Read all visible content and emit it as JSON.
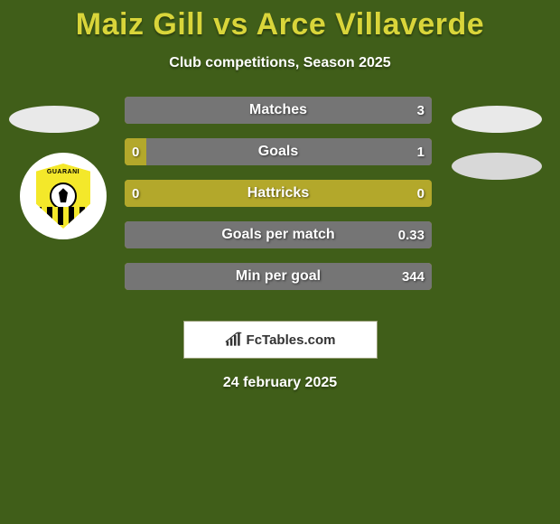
{
  "title": "Maiz Gill vs Arce Villaverde",
  "subtitle": "Club competitions, Season 2025",
  "date": "24 february 2025",
  "colors": {
    "page_bg": "#405e19",
    "title": "#d9d53a",
    "text": "#ffffff",
    "bar_left": "#b3a82b",
    "bar_right": "#757575"
  },
  "crest": {
    "band_text": "GUARANI"
  },
  "branding": {
    "label": "FcTables.com"
  },
  "rows": [
    {
      "label": "Matches",
      "left_val": "",
      "right_val": "3",
      "left_pct": 0,
      "right_pct": 100
    },
    {
      "label": "Goals",
      "left_val": "0",
      "right_val": "1",
      "left_pct": 7,
      "right_pct": 93
    },
    {
      "label": "Hattricks",
      "left_val": "0",
      "right_val": "0",
      "left_pct": 7,
      "right_pct": 0
    },
    {
      "label": "Goals per match",
      "left_val": "",
      "right_val": "0.33",
      "left_pct": 0,
      "right_pct": 100
    },
    {
      "label": "Min per goal",
      "left_val": "",
      "right_val": "344",
      "left_pct": 0,
      "right_pct": 100
    }
  ]
}
